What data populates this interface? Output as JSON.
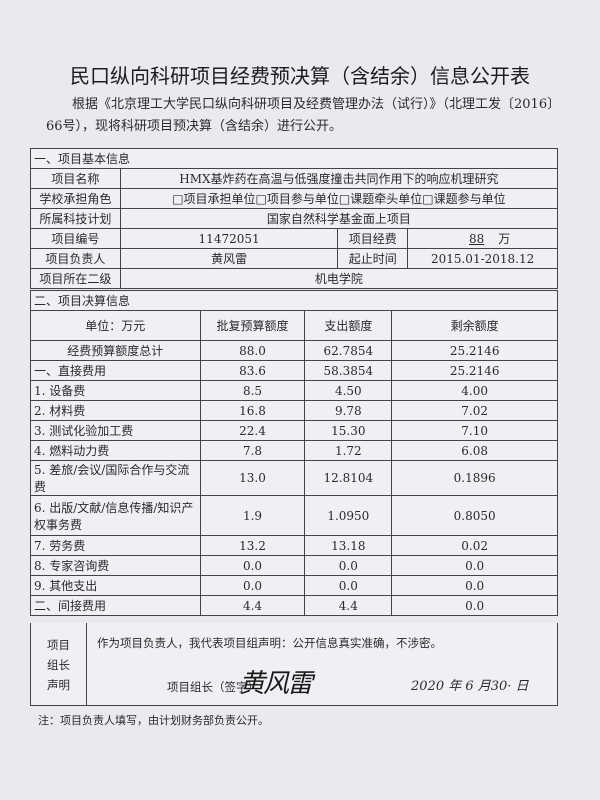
{
  "title": "民口纵向科研项目经费预决算（含结余）信息公开表",
  "intro": "根据《北京理工大学民口纵向科研项目及经费管理办法（试行）》（北理工发〔2016〕66号），现将科研项目预决算（含结余）进行公开。",
  "basic": {
    "section": "一、项目基本信息",
    "name_label": "项目名称",
    "name": "HMX基炸药在高温与低强度撞击共同作用下的响应机理研究",
    "role_label": "学校承担角色",
    "role": "□项目承担单位□项目参与单位□课题牵头单位□课题参与单位",
    "plan_label": "所属科技计划",
    "plan": "国家自然科学基金面上项目",
    "id_label": "项目编号",
    "id": "11472051",
    "fund_label": "项目经费",
    "fund": "88",
    "fund_unit": "万",
    "leader_label": "项目负责人",
    "leader": "黄风雷",
    "period_label": "起止时间",
    "period": "2015.01-2018.12",
    "dept_label": "项目所在二级",
    "dept": "机电学院"
  },
  "budget": {
    "section": "二、项目决算信息",
    "headers": [
      "单位：万元",
      "批复预算额度",
      "支出额度",
      "剩余额度"
    ],
    "rows": [
      [
        "经费预算额度总计",
        "88.0",
        "62.7854",
        "25.2146"
      ],
      [
        "一、直接费用",
        "83.6",
        "58.3854",
        "25.2146"
      ],
      [
        "1. 设备费",
        "8.5",
        "4.50",
        "4.00"
      ],
      [
        "2. 材料费",
        "16.8",
        "9.78",
        "7.02"
      ],
      [
        "3. 测试化验加工费",
        "22.4",
        "15.30",
        "7.10"
      ],
      [
        "4. 燃料动力费",
        "7.8",
        "1.72",
        "6.08"
      ],
      [
        "5. 差旅/会议/国际合作与交流费",
        "13.0",
        "12.8104",
        "0.1896"
      ],
      [
        "6. 出版/文献/信息传播/知识产权事务费",
        "1.9",
        "1.0950",
        "0.8050"
      ],
      [
        "7. 劳务费",
        "13.2",
        "13.18",
        "0.02"
      ],
      [
        "8. 专家咨询费",
        "0.0",
        "0.0",
        "0.0"
      ],
      [
        "9. 其他支出",
        "0.0",
        "0.0",
        "0.0"
      ],
      [
        "二、间接费用",
        "4.4",
        "4.4",
        "0.0"
      ]
    ]
  },
  "declaration": {
    "label": "项目组长声明",
    "statement": "作为项目负责人，我代表项目组声明：公开信息真实准确，不涉密。",
    "sign_label": "项目组长（签字）：",
    "signature": "黄风雷",
    "date": "2020 年 6 月30· 日"
  },
  "note": "注：项目负责人填写，由计划财务部负责公开。"
}
